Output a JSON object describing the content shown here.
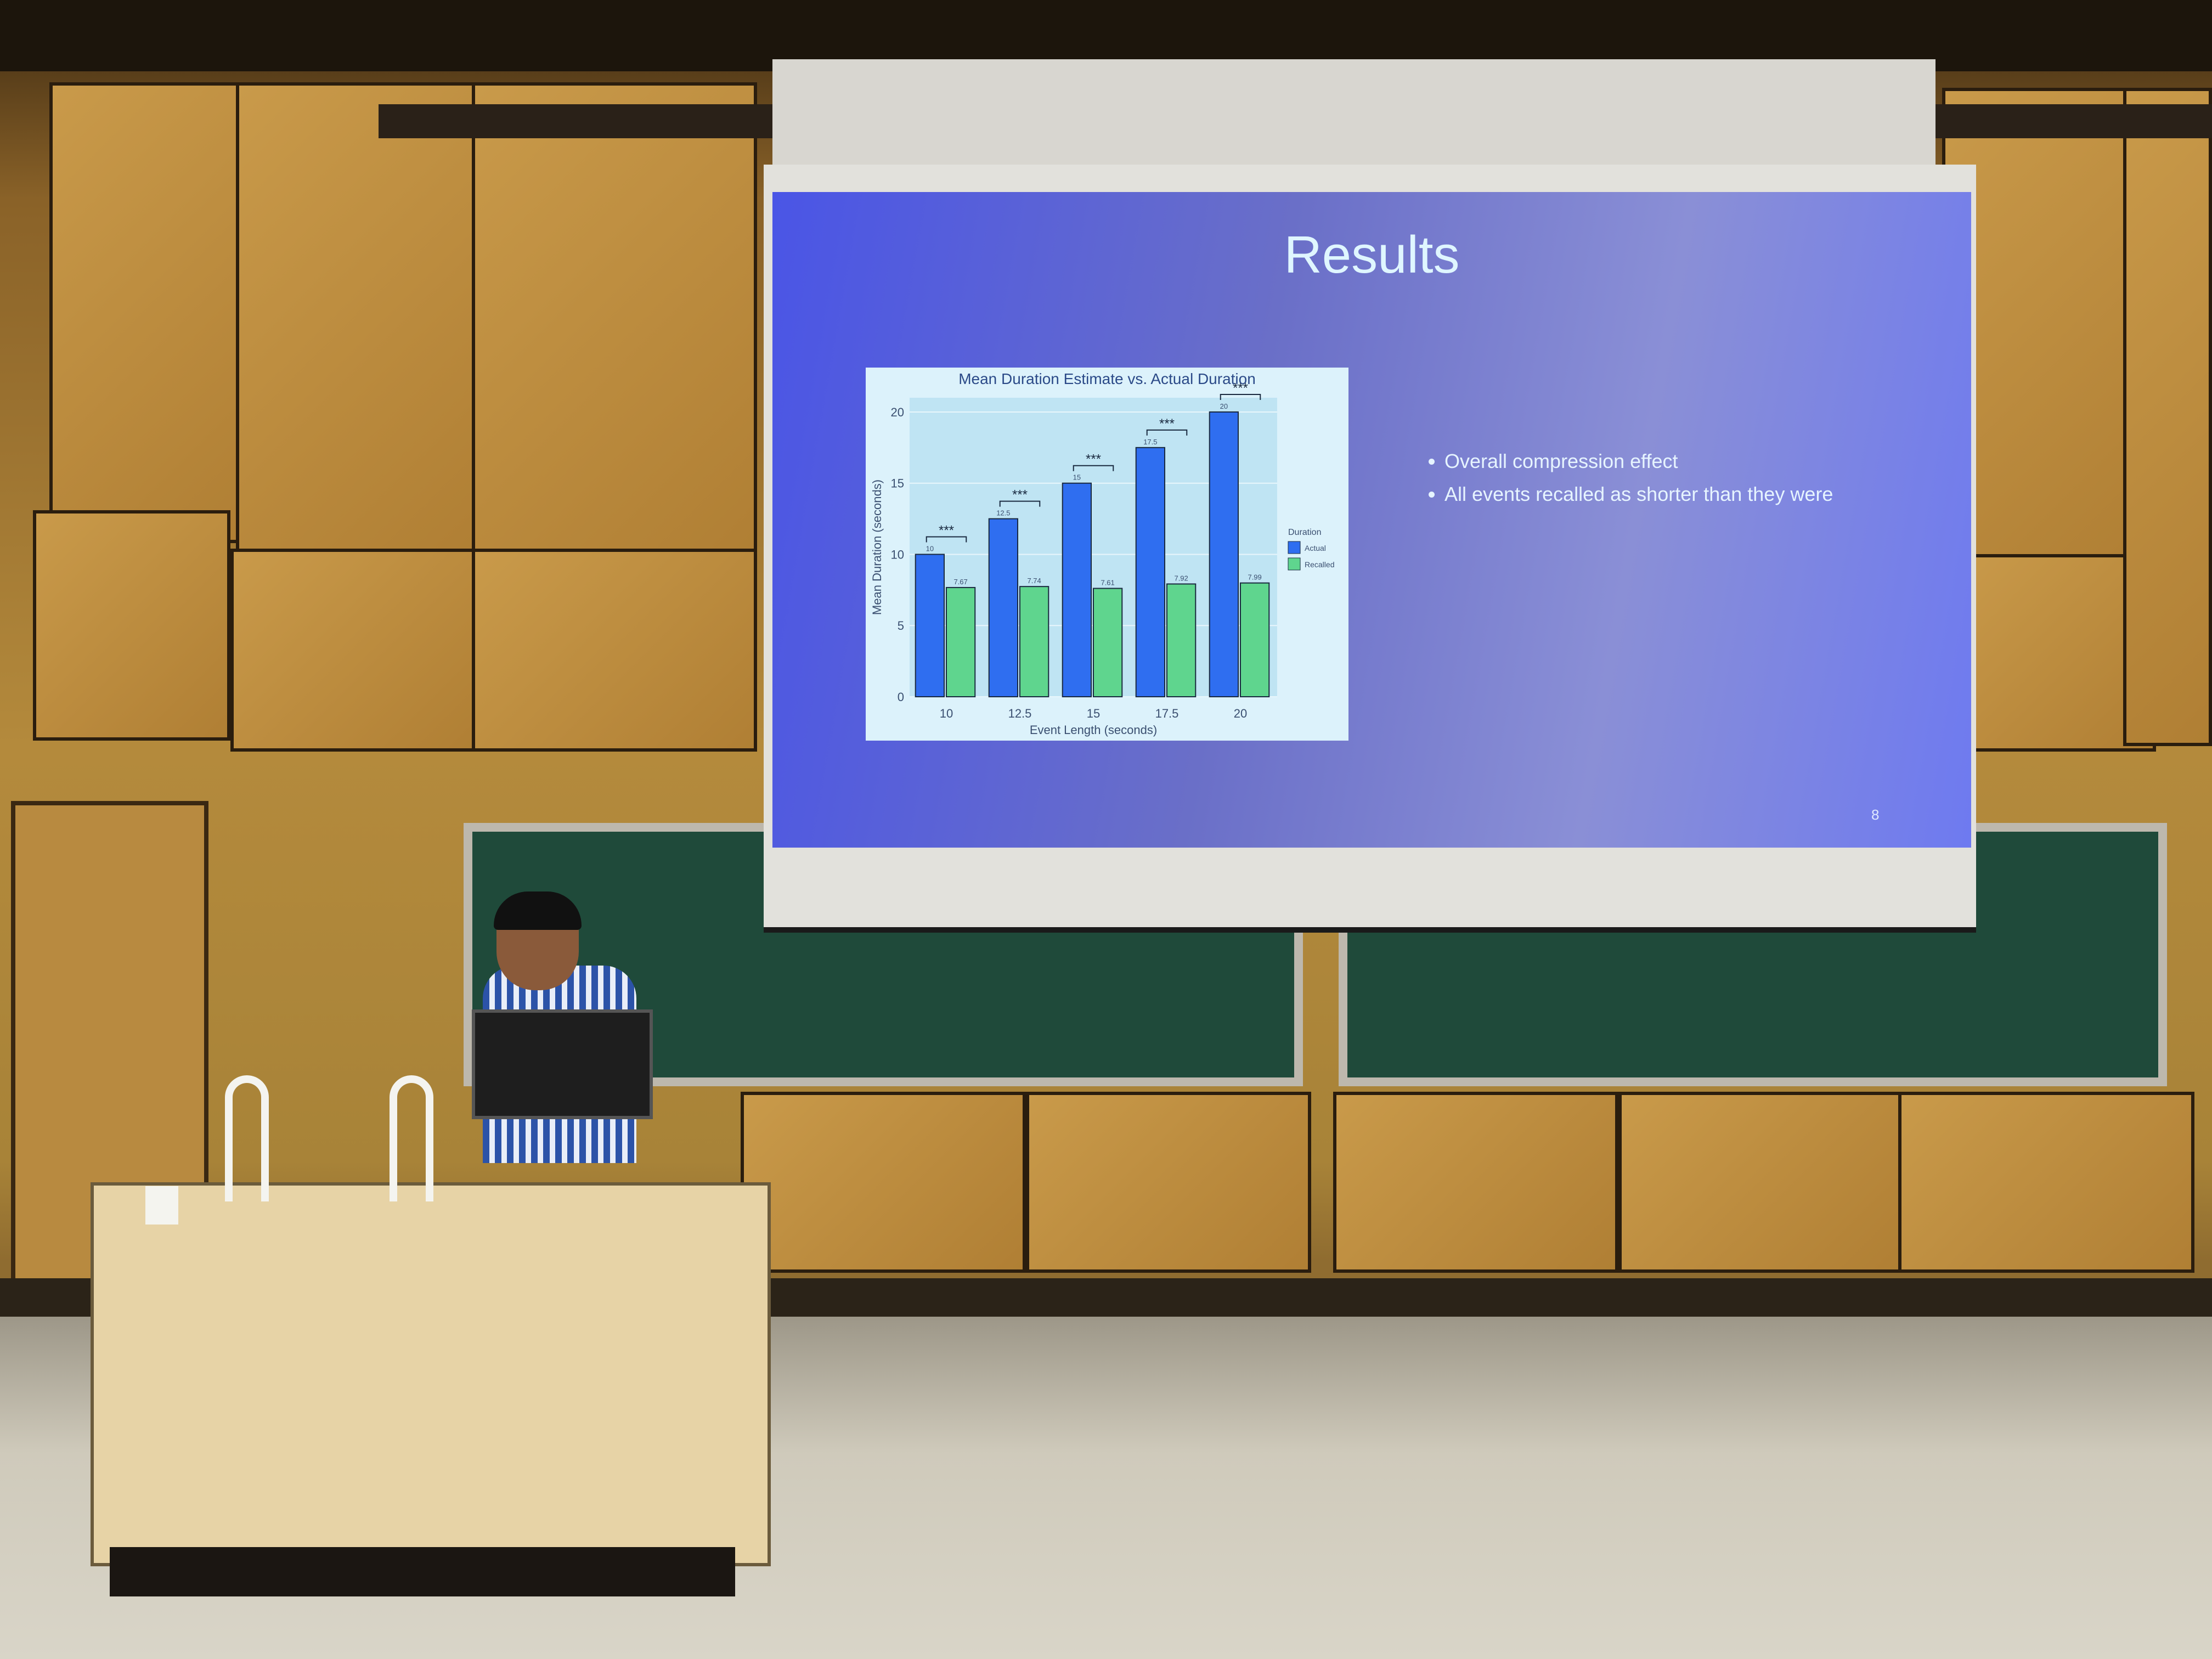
{
  "slide": {
    "title": "Results",
    "bullets": [
      "Overall compression effect",
      "All events recalled as shorter than they were"
    ],
    "page_number": "8"
  },
  "chart_data": {
    "type": "bar",
    "title": "Mean Duration Estimate vs. Actual Duration",
    "xlabel": "Event Length (seconds)",
    "ylabel": "Mean Duration (seconds)",
    "categories": [
      "10",
      "12.5",
      "15",
      "17.5",
      "20"
    ],
    "series": [
      {
        "name": "Actual",
        "color": "#2f6ef0",
        "values": [
          10,
          12.5,
          15,
          17.5,
          20
        ],
        "labels": [
          "10",
          "12.5",
          "15",
          "17.5",
          "20"
        ]
      },
      {
        "name": "Recalled",
        "color": "#5fd58e",
        "values": [
          7.67,
          7.74,
          7.61,
          7.92,
          7.99
        ],
        "labels": [
          "7.67",
          "7.74",
          "7.61",
          "7.92",
          "7.99"
        ]
      }
    ],
    "significance": [
      "***",
      "***",
      "***",
      "***",
      "***"
    ],
    "legend_title": "Duration",
    "legend_position": "right",
    "ylim": [
      0,
      21
    ],
    "yticks": [
      "0",
      "5",
      "10",
      "15",
      "20"
    ],
    "grid": true
  }
}
